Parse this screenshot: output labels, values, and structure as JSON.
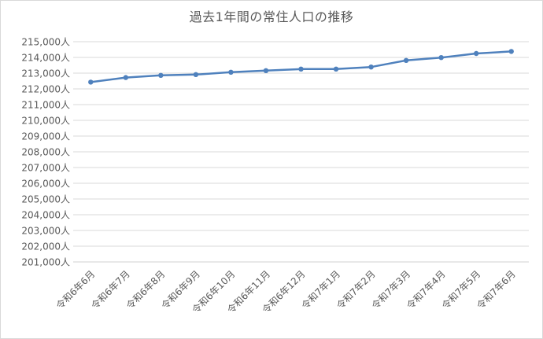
{
  "chart_data": {
    "type": "line",
    "title": "過去1年間の常住人口の推移",
    "xlabel": "",
    "ylabel": "",
    "categories": [
      "令和6年6月",
      "令和6年7月",
      "令和6年8月",
      "令和6年9月",
      "令和6年10月",
      "令和6年11月",
      "令和6年12月",
      "令和7年1月",
      "令和7年2月",
      "令和7年3月",
      "令和7年4月",
      "令和7年5月",
      "令和7年6月"
    ],
    "series": [
      {
        "name": "",
        "color": "#4f81bd",
        "values": [
          212430,
          212720,
          212860,
          212910,
          213060,
          213160,
          213260,
          213260,
          213390,
          213810,
          213990,
          214250,
          214380
        ]
      }
    ],
    "ylim": [
      201000,
      215000
    ],
    "ytick_step": 1000,
    "ytick_labels": [
      "215,000人",
      "214,000人",
      "213,000人",
      "212,000人",
      "211,000人",
      "210,000人",
      "209,000人",
      "208,000人",
      "207,000人",
      "206,000人",
      "205,000人",
      "204,000人",
      "203,000人",
      "202,000人",
      "201,000人"
    ],
    "grid": true,
    "legend": "none"
  }
}
